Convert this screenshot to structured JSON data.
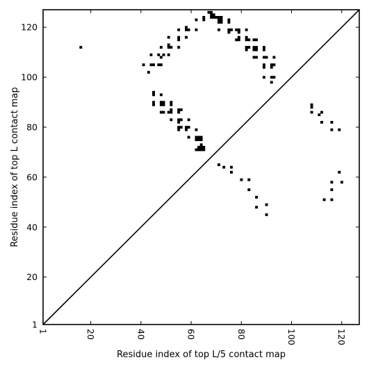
{
  "chart_data": {
    "type": "scatter",
    "xlabel": "Residue index of top L/5 contact map",
    "ylabel": "Residue index of top L contact map",
    "xlim": [
      1,
      127
    ],
    "ylim": [
      1,
      127
    ],
    "xticks": [
      1,
      20,
      40,
      60,
      80,
      100,
      120
    ],
    "yticks": [
      1,
      20,
      40,
      60,
      80,
      100,
      120
    ],
    "xtick_label_rotation": "vertical",
    "grid": false,
    "marker": "square",
    "marker_color": "#000000",
    "diagonal": {
      "from": [
        1,
        1
      ],
      "to": [
        127,
        127
      ],
      "color": "#000000"
    },
    "series": [
      {
        "region": "upper-left",
        "points": [
          [
            16,
            112
          ],
          [
            41,
            105
          ],
          [
            43,
            102
          ],
          [
            44,
            105
          ],
          [
            44,
            109
          ],
          [
            45,
            105
          ],
          [
            45,
            94
          ],
          [
            45,
            93
          ],
          [
            45,
            90
          ],
          [
            45,
            89
          ],
          [
            47,
            105
          ],
          [
            47,
            109
          ],
          [
            48,
            108
          ],
          [
            48,
            105
          ],
          [
            48,
            112
          ],
          [
            48,
            93
          ],
          [
            48,
            90
          ],
          [
            48,
            89
          ],
          [
            48,
            86
          ],
          [
            49,
            90
          ],
          [
            49,
            86
          ],
          [
            49,
            109
          ],
          [
            49,
            89
          ],
          [
            51,
            116
          ],
          [
            51,
            113
          ],
          [
            51,
            112
          ],
          [
            51,
            109
          ],
          [
            51,
            86
          ],
          [
            52,
            112
          ],
          [
            52,
            90
          ],
          [
            52,
            89
          ],
          [
            52,
            87
          ],
          [
            52,
            86
          ],
          [
            52,
            83
          ],
          [
            55,
            119
          ],
          [
            55,
            116
          ],
          [
            55,
            115
          ],
          [
            55,
            112
          ],
          [
            55,
            87
          ],
          [
            55,
            86
          ],
          [
            55,
            83
          ],
          [
            55,
            82
          ],
          [
            55,
            80
          ],
          [
            55,
            79
          ],
          [
            56,
            87
          ],
          [
            56,
            83
          ],
          [
            56,
            80
          ],
          [
            58,
            120
          ],
          [
            58,
            119
          ],
          [
            58,
            116
          ],
          [
            58,
            80
          ],
          [
            58,
            79
          ],
          [
            59,
            119
          ],
          [
            59,
            83
          ],
          [
            59,
            80
          ],
          [
            59,
            76
          ],
          [
            62,
            123
          ],
          [
            62,
            119
          ],
          [
            62,
            79
          ],
          [
            62,
            76
          ],
          [
            62,
            75
          ],
          [
            62,
            71
          ],
          [
            63,
            76
          ],
          [
            63,
            75
          ],
          [
            63,
            72
          ],
          [
            63,
            71
          ],
          [
            64,
            76
          ],
          [
            64,
            75
          ],
          [
            64,
            73
          ],
          [
            64,
            72
          ],
          [
            64,
            71
          ],
          [
            65,
            124
          ],
          [
            65,
            123
          ],
          [
            65,
            72
          ],
          [
            65,
            71
          ],
          [
            67,
            126
          ],
          [
            68,
            126
          ],
          [
            68,
            125
          ],
          [
            68,
            124
          ],
          [
            69,
            125
          ],
          [
            69,
            124
          ],
          [
            70,
            124
          ],
          [
            71,
            124
          ],
          [
            71,
            123
          ],
          [
            71,
            122
          ],
          [
            71,
            119
          ],
          [
            72,
            124
          ],
          [
            72,
            123
          ],
          [
            72,
            122
          ],
          [
            75,
            123
          ],
          [
            75,
            122
          ],
          [
            75,
            119
          ],
          [
            75,
            118
          ],
          [
            76,
            119
          ],
          [
            78,
            119
          ],
          [
            78,
            115
          ],
          [
            79,
            119
          ],
          [
            79,
            118
          ],
          [
            79,
            116
          ],
          [
            79,
            115
          ],
          [
            82,
            119
          ],
          [
            82,
            116
          ],
          [
            82,
            115
          ],
          [
            82,
            112
          ],
          [
            82,
            111
          ],
          [
            83,
            115
          ],
          [
            83,
            112
          ],
          [
            85,
            115
          ],
          [
            85,
            112
          ],
          [
            85,
            111
          ],
          [
            85,
            108
          ],
          [
            86,
            115
          ],
          [
            86,
            112
          ],
          [
            86,
            111
          ],
          [
            86,
            108
          ],
          [
            89,
            112
          ],
          [
            89,
            111
          ],
          [
            89,
            108
          ],
          [
            89,
            105
          ],
          [
            89,
            104
          ],
          [
            89,
            100
          ],
          [
            90,
            108
          ],
          [
            92,
            105
          ],
          [
            92,
            104
          ],
          [
            92,
            100
          ],
          [
            92,
            98
          ],
          [
            93,
            108
          ],
          [
            93,
            105
          ],
          [
            93,
            100
          ]
        ]
      },
      {
        "region": "lower-right",
        "points": [
          [
            71,
            65
          ],
          [
            73,
            64
          ],
          [
            76,
            64
          ],
          [
            76,
            62
          ],
          [
            80,
            59
          ],
          [
            83,
            59
          ],
          [
            83,
            55
          ],
          [
            86,
            52
          ],
          [
            86,
            48
          ],
          [
            90,
            49
          ],
          [
            90,
            45
          ],
          [
            108,
            89
          ],
          [
            108,
            88
          ],
          [
            108,
            86
          ],
          [
            111,
            85
          ],
          [
            112,
            86
          ],
          [
            112,
            82
          ],
          [
            113,
            51
          ],
          [
            116,
            82
          ],
          [
            116,
            79
          ],
          [
            116,
            58
          ],
          [
            116,
            55
          ],
          [
            116,
            51
          ],
          [
            119,
            79
          ],
          [
            119,
            62
          ],
          [
            120,
            58
          ]
        ]
      }
    ]
  }
}
